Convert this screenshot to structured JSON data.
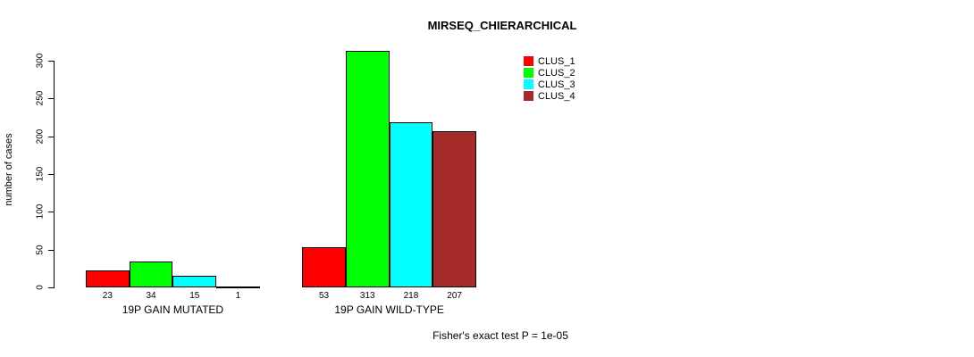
{
  "chart_data": {
    "type": "bar",
    "title": "MIRSEQ_CHIERARCHICAL",
    "ylabel": "number of cases",
    "xlabel": "",
    "ylim": [
      0,
      300
    ],
    "yticks": [
      0,
      50,
      100,
      150,
      200,
      250,
      300
    ],
    "grid": false,
    "legend_position": "top-right",
    "legend": {
      "entries": [
        {
          "label": "CLUS_1",
          "color": "#FF0000"
        },
        {
          "label": "CLUS_2",
          "color": "#00FF00"
        },
        {
          "label": "CLUS_3",
          "color": "#00FFFF"
        },
        {
          "label": "CLUS_4",
          "color": "#A52A2A"
        }
      ]
    },
    "series_colors": [
      "#FF0000",
      "#00FF00",
      "#00FFFF",
      "#A52A2A"
    ],
    "categories": [
      "19P GAIN MUTATED",
      "19P GAIN WILD-TYPE"
    ],
    "groups": [
      {
        "label": "19P GAIN MUTATED",
        "values": [
          23,
          34,
          15,
          1
        ]
      },
      {
        "label": "19P GAIN WILD-TYPE",
        "values": [
          53,
          313,
          218,
          207
        ]
      }
    ],
    "annotation": "Fisher's exact test P = 1e-05"
  }
}
